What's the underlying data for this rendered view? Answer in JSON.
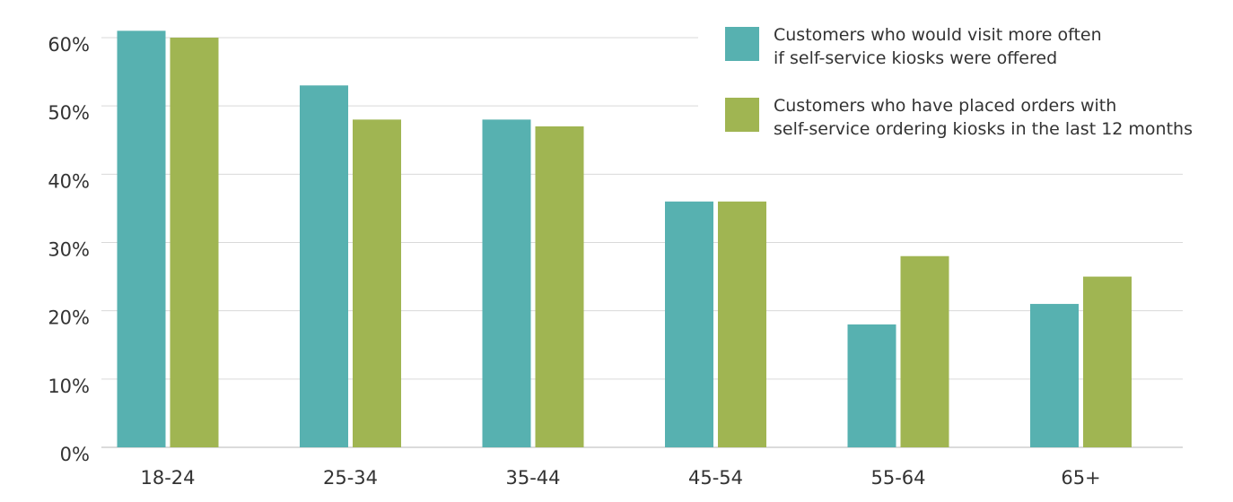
{
  "chart_data": {
    "type": "bar",
    "title": "",
    "xlabel": "",
    "ylabel": "",
    "ylim": [
      0,
      60
    ],
    "yticks": [
      0,
      10,
      20,
      30,
      40,
      50,
      60
    ],
    "ytick_labels": [
      "0%",
      "10%",
      "20%",
      "30%",
      "40%",
      "50%",
      "60%"
    ],
    "grid": true,
    "legend_position": "top-right",
    "categories": [
      "18-24",
      "25-34",
      "35-44",
      "45-54",
      "55-64",
      "65+"
    ],
    "series": [
      {
        "name": "Customers who would visit more often if self-service kiosks were offered",
        "legend_lines": [
          "Customers who would visit more often",
          "if self-service kiosks were offered"
        ],
        "color": "#57b1b0",
        "values": [
          61,
          53,
          48,
          36,
          18,
          21
        ]
      },
      {
        "name": "Customers who have placed orders with self-service ordering kiosks in the last 12 months",
        "legend_lines": [
          "Customers who have placed orders with",
          "self-service ordering kiosks in the last 12 months"
        ],
        "color": "#a0b552",
        "values": [
          60,
          48,
          47,
          36,
          28,
          25
        ]
      }
    ]
  }
}
